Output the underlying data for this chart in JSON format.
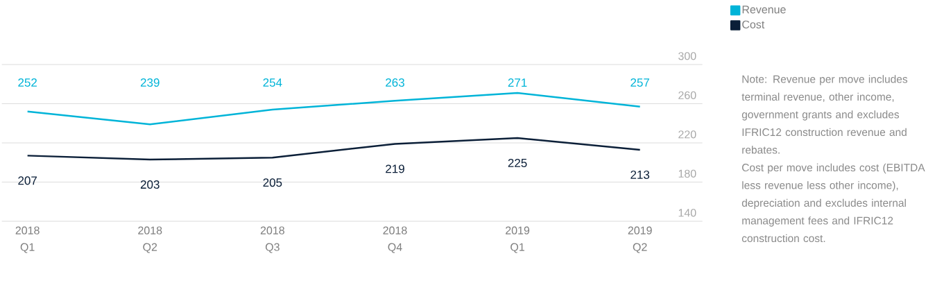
{
  "chart_data": {
    "type": "line",
    "categories": [
      "2018 Q1",
      "2018 Q2",
      "2018 Q3",
      "2018 Q4",
      "2019 Q1",
      "2019 Q2"
    ],
    "series": [
      {
        "name": "Revenue",
        "color": "#00b4d8",
        "values": [
          252,
          239,
          254,
          263,
          271,
          257
        ]
      },
      {
        "name": "Cost",
        "color": "#0b1f38",
        "values": [
          207,
          203,
          205,
          219,
          225,
          213
        ]
      }
    ],
    "ylim": [
      140,
      300
    ],
    "yticks": [
      140,
      180,
      220,
      260,
      300
    ],
    "grid": "y",
    "legend": "top right",
    "data_labels": true,
    "marker": "none",
    "line_style": "solid",
    "annotations": [
      "Note: Revenue per move includes terminal revenue, other income, government grants and excludes IFRIC12 construction revenue and rebates.",
      "Cost per move includes cost (EBITDA less revenue less other income), depreciation and excludes internal management fees and IFRIC12 construction cost."
    ]
  }
}
